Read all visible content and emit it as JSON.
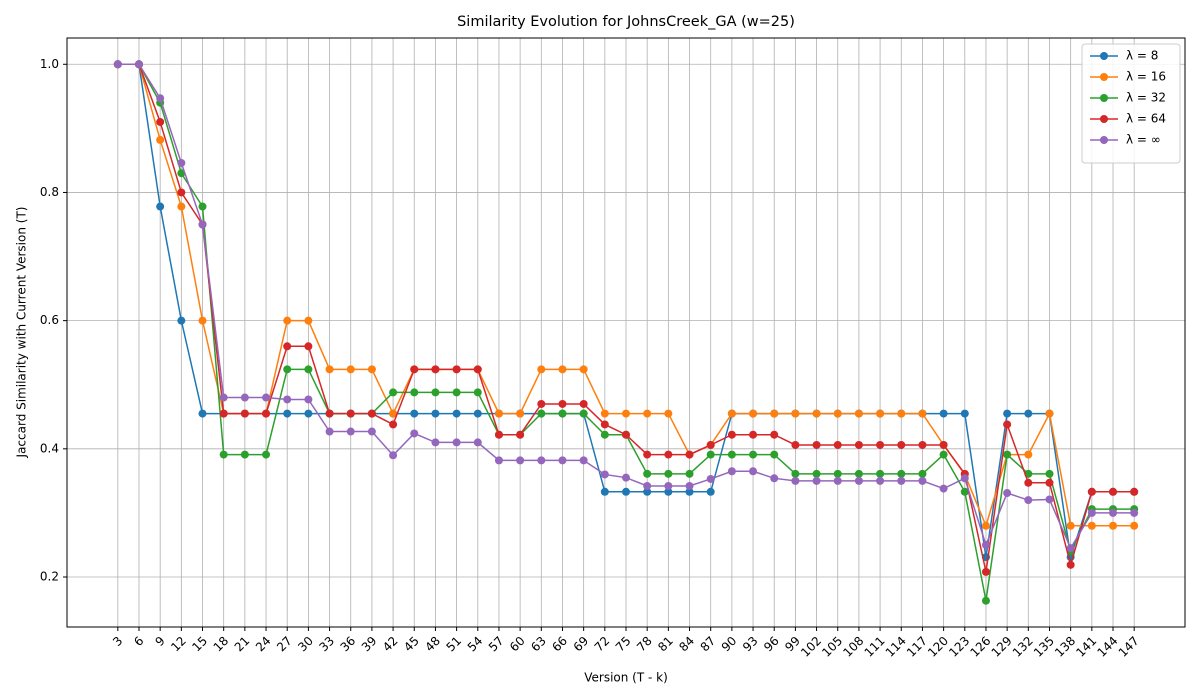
{
  "chart_data": {
    "type": "line",
    "title": "Similarity Evolution for JohnsCreek_GA (w=25)",
    "x_label": "Version (T - k)",
    "y_label": "Jaccard Similarity with Current Version (T)",
    "x": [
      3,
      6,
      9,
      12,
      15,
      18,
      21,
      24,
      27,
      30,
      33,
      36,
      39,
      42,
      45,
      48,
      51,
      54,
      57,
      60,
      63,
      66,
      69,
      72,
      75,
      78,
      81,
      84,
      87,
      90,
      93,
      96,
      99,
      102,
      105,
      108,
      111,
      114,
      117,
      120,
      123,
      126,
      129,
      132,
      135,
      138,
      141,
      144,
      147
    ],
    "xlim": [
      -4.2,
      154.2
    ],
    "xticks": [
      3,
      6,
      9,
      12,
      15,
      18,
      21,
      24,
      27,
      30,
      33,
      36,
      39,
      42,
      45,
      48,
      51,
      54,
      57,
      60,
      63,
      66,
      69,
      72,
      75,
      78,
      81,
      84,
      87,
      90,
      93,
      96,
      99,
      102,
      105,
      108,
      111,
      114,
      117,
      120,
      123,
      126,
      129,
      132,
      135,
      138,
      141,
      144,
      147
    ],
    "ylim": [
      0.122,
      1.041
    ],
    "yticks": [
      0.2,
      0.4,
      0.6,
      0.8,
      {
        "value": 1,
        "label": "1.0"
      }
    ],
    "grid": true,
    "legend": "upper right",
    "series": [
      {
        "name": "λ = 8",
        "color": "#1f77b4",
        "values": [
          1,
          1,
          0.778,
          0.6,
          0.455,
          0.455,
          0.455,
          0.455,
          0.455,
          0.455,
          0.455,
          0.455,
          0.455,
          0.455,
          0.455,
          0.455,
          0.455,
          0.455,
          0.455,
          0.455,
          0.455,
          0.455,
          0.455,
          0.333,
          0.333,
          0.333,
          0.333,
          0.333,
          0.333,
          0.455,
          0.455,
          0.455,
          0.455,
          0.455,
          0.455,
          0.455,
          0.455,
          0.455,
          0.455,
          0.455,
          0.455,
          0.231,
          0.455,
          0.455,
          0.455,
          0.231,
          0.333,
          0.333,
          0.333
        ]
      },
      {
        "name": "λ = 16",
        "color": "#ff7f0e",
        "values": [
          1,
          1,
          0.882,
          0.778,
          0.6,
          0.455,
          0.455,
          0.455,
          0.6,
          0.6,
          0.524,
          0.524,
          0.524,
          0.455,
          0.524,
          0.524,
          0.524,
          0.524,
          0.455,
          0.455,
          0.524,
          0.524,
          0.524,
          0.455,
          0.455,
          0.455,
          0.455,
          0.391,
          0.406,
          0.455,
          0.455,
          0.455,
          0.455,
          0.455,
          0.455,
          0.455,
          0.455,
          0.455,
          0.455,
          0.406,
          0.36,
          0.28,
          0.391,
          0.391,
          0.455,
          0.28,
          0.28,
          0.28,
          0.28
        ]
      },
      {
        "name": "λ = 32",
        "color": "#2ca02c",
        "values": [
          1,
          1,
          0.94,
          0.83,
          0.778,
          0.391,
          0.391,
          0.391,
          0.524,
          0.524,
          0.455,
          0.455,
          0.455,
          0.488,
          0.488,
          0.488,
          0.488,
          0.488,
          0.422,
          0.422,
          0.455,
          0.455,
          0.455,
          0.422,
          0.422,
          0.361,
          0.361,
          0.361,
          0.391,
          0.391,
          0.391,
          0.391,
          0.361,
          0.361,
          0.361,
          0.361,
          0.361,
          0.361,
          0.361,
          0.391,
          0.333,
          0.163,
          0.391,
          0.361,
          0.361,
          0.24,
          0.306,
          0.306,
          0.306
        ]
      },
      {
        "name": "λ = 64",
        "color": "#d62728",
        "values": [
          1,
          1,
          0.91,
          0.8,
          0.75,
          0.455,
          0.455,
          0.455,
          0.56,
          0.56,
          0.455,
          0.455,
          0.455,
          0.438,
          0.524,
          0.524,
          0.524,
          0.524,
          0.422,
          0.422,
          0.47,
          0.47,
          0.47,
          0.438,
          0.422,
          0.391,
          0.391,
          0.391,
          0.406,
          0.422,
          0.422,
          0.422,
          0.406,
          0.406,
          0.406,
          0.406,
          0.406,
          0.406,
          0.406,
          0.406,
          0.361,
          0.208,
          0.438,
          0.347,
          0.347,
          0.219,
          0.333,
          0.333,
          0.333
        ]
      },
      {
        "name": "λ = ∞",
        "color": "#9467bd",
        "values": [
          1,
          1,
          0.947,
          0.846,
          0.75,
          0.48,
          0.48,
          0.48,
          0.477,
          0.477,
          0.427,
          0.427,
          0.427,
          0.39,
          0.424,
          0.41,
          0.41,
          0.41,
          0.382,
          0.382,
          0.382,
          0.382,
          0.382,
          0.36,
          0.355,
          0.342,
          0.342,
          0.342,
          0.353,
          0.365,
          0.365,
          0.354,
          0.35,
          0.35,
          0.35,
          0.35,
          0.35,
          0.35,
          0.35,
          0.338,
          0.354,
          0.25,
          0.331,
          0.32,
          0.321,
          0.245,
          0.3,
          0.3,
          0.3
        ]
      }
    ]
  }
}
